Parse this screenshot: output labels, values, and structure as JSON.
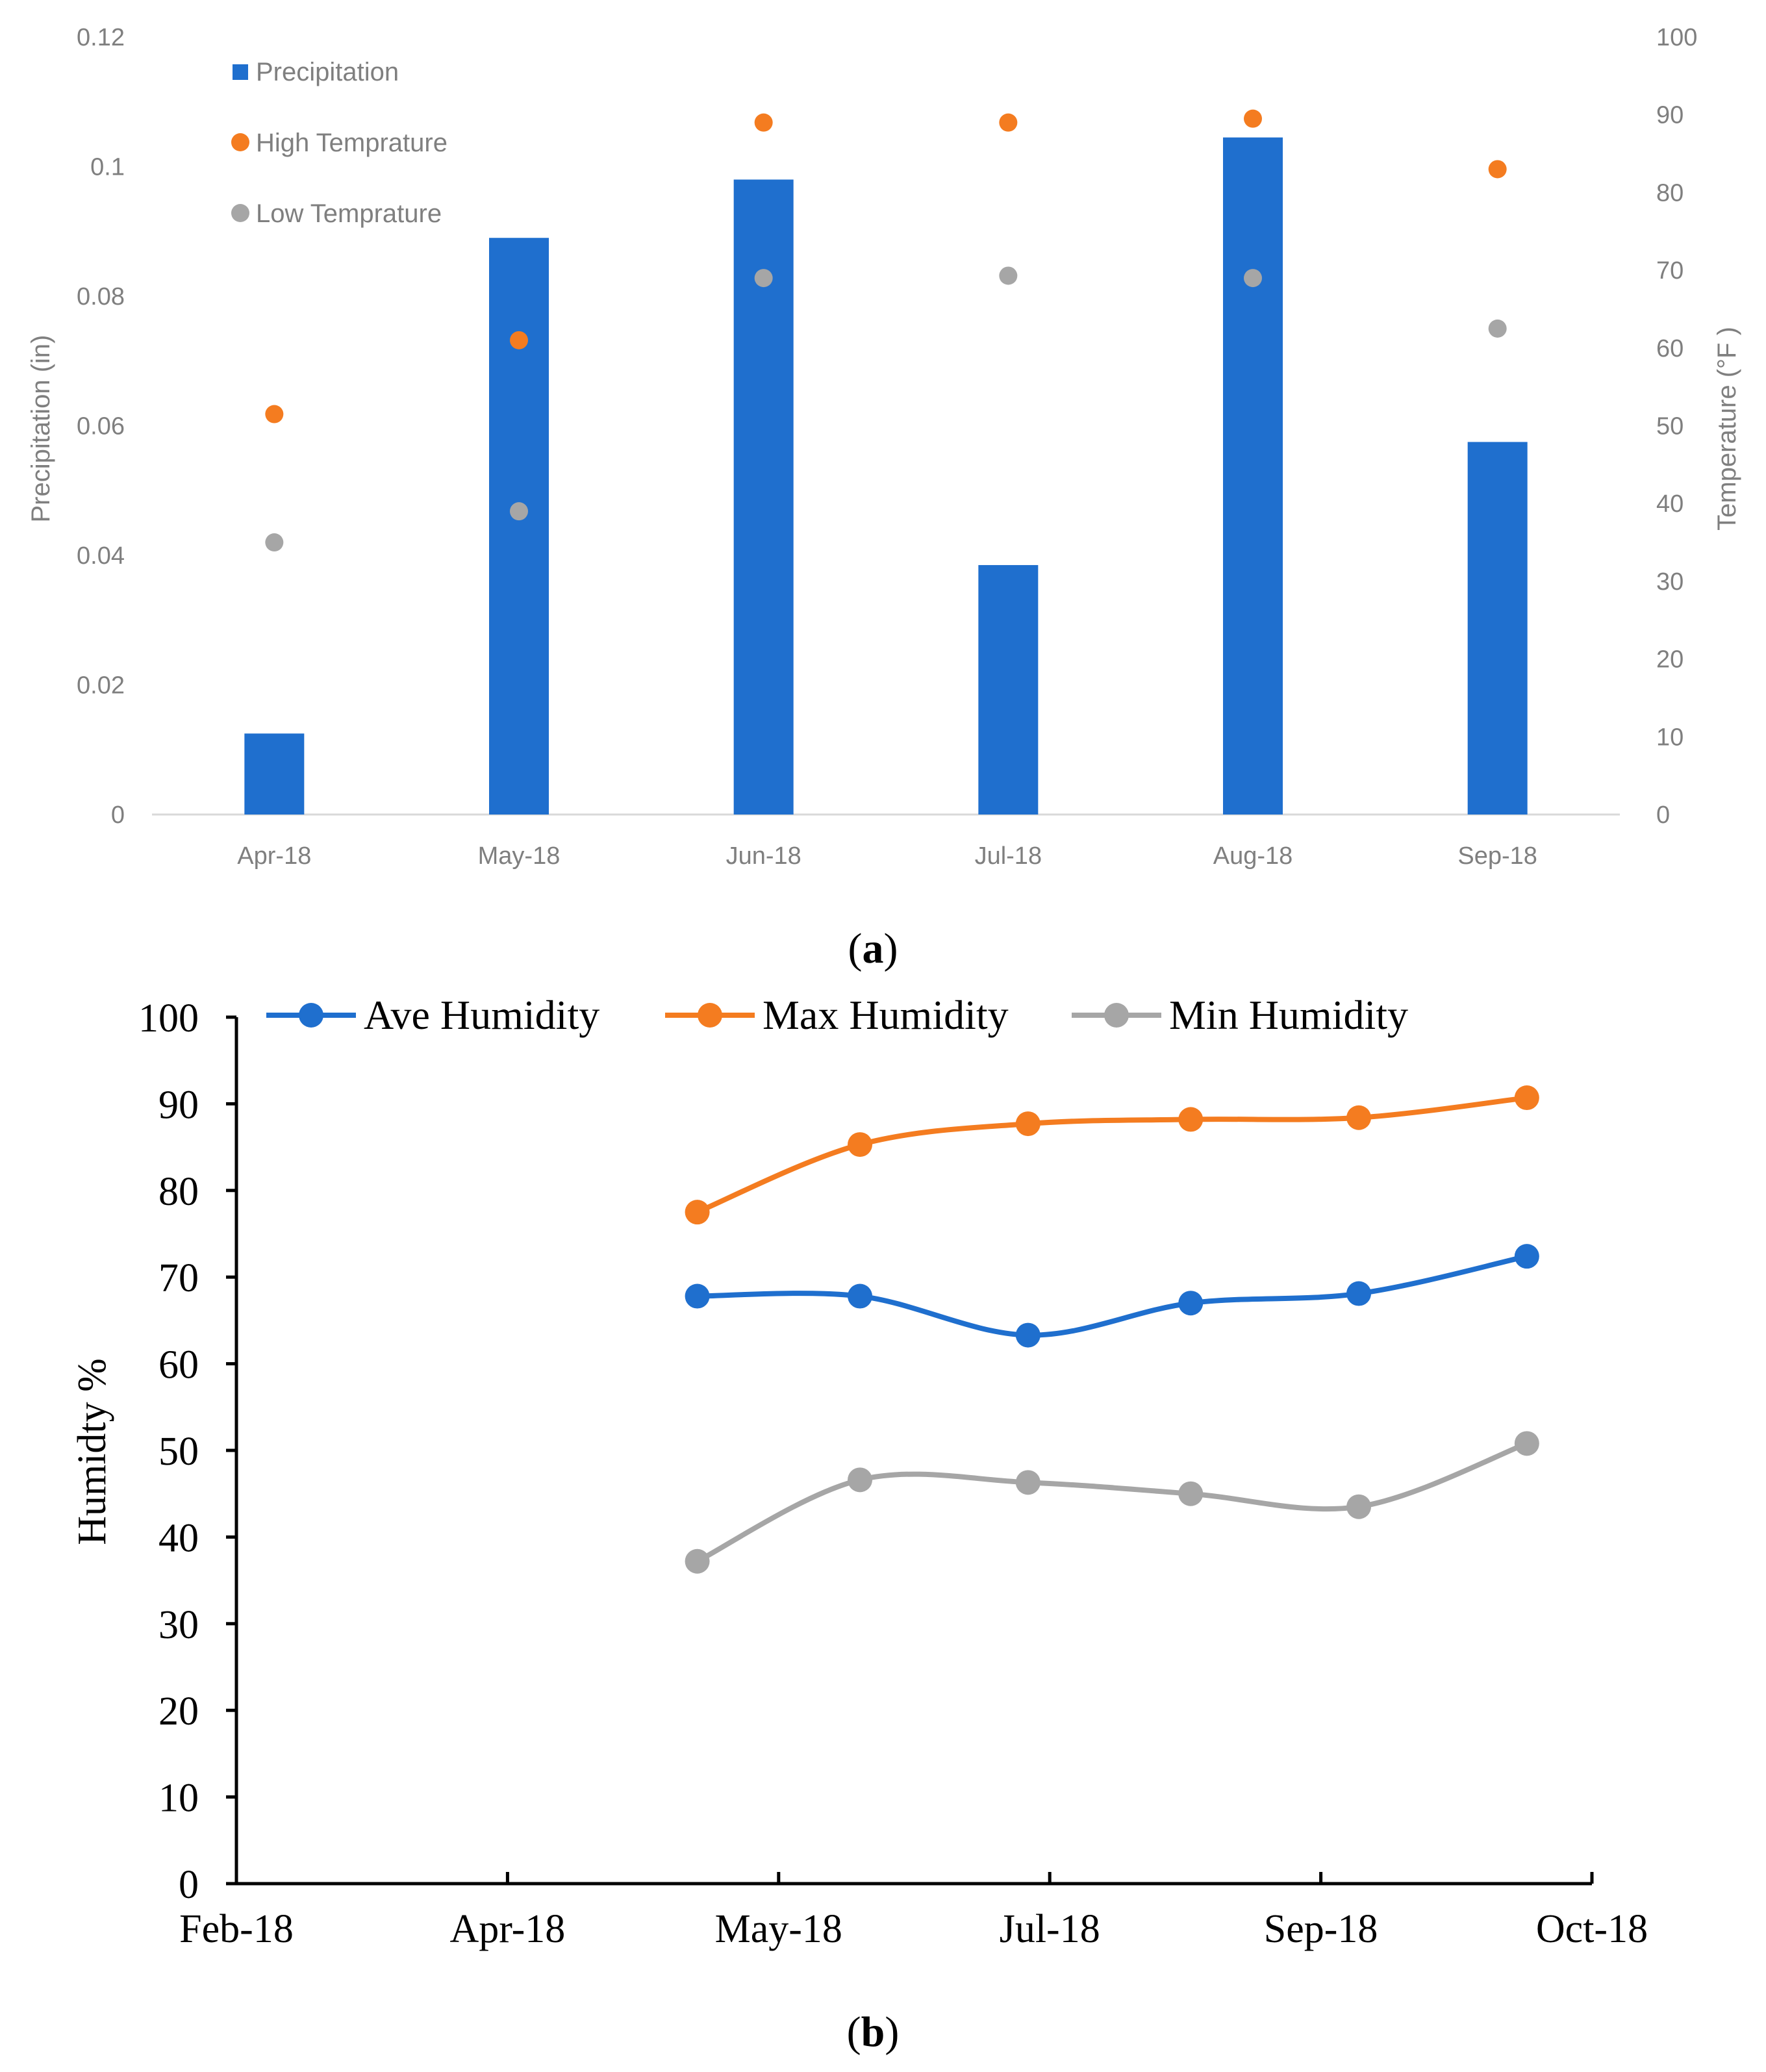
{
  "chart_data": [
    {
      "type": "bar",
      "panel_label": "a",
      "categories": [
        "Apr-18",
        "May-18",
        "Jun-18",
        "Jul-18",
        "Aug-18",
        "Sep-18"
      ],
      "series": [
        {
          "name": "Precipitation",
          "kind": "bar",
          "axis": "left",
          "color": "#1f6fce",
          "values": [
            0.0125,
            0.089,
            0.098,
            0.0385,
            0.1045,
            0.0575
          ]
        },
        {
          "name": "High Temprature",
          "kind": "scatter",
          "axis": "right",
          "color": "#f47c20",
          "values": [
            51.5,
            61,
            89,
            89,
            89.5,
            83
          ]
        },
        {
          "name": "Low Temprature",
          "kind": "scatter",
          "axis": "right",
          "color": "#a6a6a6",
          "values": [
            35,
            39,
            69,
            69.3,
            69,
            62.5
          ]
        }
      ],
      "ylabel": "Precipitation  (in)",
      "y2label": "Temperature (°F )",
      "ylim": [
        0,
        0.12
      ],
      "y2lim": [
        0,
        100
      ],
      "yticks": [
        "0",
        "0.02",
        "0.04",
        "0.06",
        "0.08",
        "0.1",
        "0.12"
      ],
      "y2ticks": [
        "0",
        "10",
        "20",
        "30",
        "40",
        "50",
        "60",
        "70",
        "80",
        "90",
        "100"
      ],
      "legend": "top-left",
      "grid": false
    },
    {
      "type": "line",
      "panel_label": "b",
      "x_index": [
        1.7,
        2.3,
        2.92,
        3.52,
        4.14,
        4.76
      ],
      "series": [
        {
          "name": "Ave Humidity",
          "color": "#1f6fce",
          "values": [
            67.8,
            67.8,
            63.3,
            67.0,
            68.1,
            72.4
          ]
        },
        {
          "name": "Max Humidity",
          "color": "#f47c20",
          "values": [
            77.5,
            85.3,
            87.7,
            88.2,
            88.4,
            90.7
          ]
        },
        {
          "name": "Min Humidity",
          "color": "#a6a6a6",
          "values": [
            37.2,
            46.6,
            46.3,
            45.0,
            43.5,
            50.8
          ]
        }
      ],
      "xticks": [
        "Feb-18",
        "Apr-18",
        "May-18",
        "Jul-18",
        "Sep-18",
        "Oct-18"
      ],
      "xlim": [
        0,
        5
      ],
      "ylabel": "Humidty %",
      "ylim": [
        0,
        100
      ],
      "yticks": [
        "0",
        "10",
        "20",
        "30",
        "40",
        "50",
        "60",
        "70",
        "80",
        "90",
        "100"
      ],
      "legend": "top",
      "grid": false
    }
  ]
}
